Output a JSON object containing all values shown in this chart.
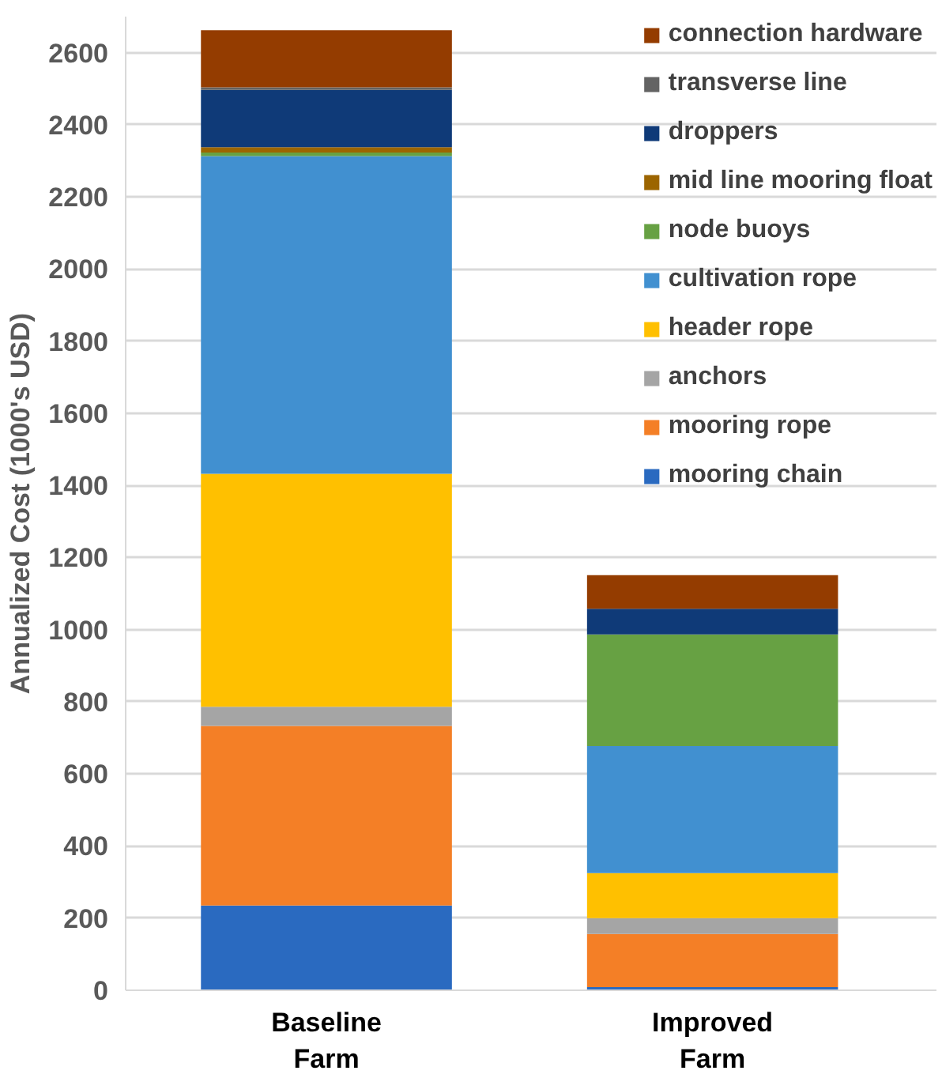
{
  "chart_data": {
    "type": "bar",
    "stacked": true,
    "ylabel": "Annualized Cost (1000's USD)",
    "categories": [
      "Baseline Farm",
      "Improved Farm"
    ],
    "series": [
      {
        "name": "mooring chain",
        "color": "#2a6ac0",
        "values": [
          235,
          9
        ]
      },
      {
        "name": "mooring rope",
        "color": "#f47f26",
        "values": [
          498,
          147
        ]
      },
      {
        "name": "anchors",
        "color": "#a5a5a5",
        "values": [
          53,
          44
        ]
      },
      {
        "name": "header rope",
        "color": "#ffc000",
        "values": [
          646,
          125
        ]
      },
      {
        "name": "cultivation rope",
        "color": "#4190d0",
        "values": [
          881,
          352
        ]
      },
      {
        "name": "node buoys",
        "color": "#67a143",
        "values": [
          10,
          310
        ]
      },
      {
        "name": "mid line mooring float",
        "color": "#9c6500",
        "values": [
          15,
          0
        ]
      },
      {
        "name": "droppers",
        "color": "#0f3a78",
        "values": [
          159,
          71
        ]
      },
      {
        "name": "transverse line",
        "color": "#636363",
        "values": [
          7,
          0
        ]
      },
      {
        "name": "connection hardware",
        "color": "#943c00",
        "values": [
          158,
          93
        ]
      }
    ],
    "ylim": [
      0,
      2700
    ],
    "yticks": [
      0,
      200,
      400,
      600,
      800,
      1000,
      1200,
      1400,
      1600,
      1800,
      2000,
      2200,
      2400,
      2600
    ],
    "grid": "y",
    "legend": "top right"
  }
}
